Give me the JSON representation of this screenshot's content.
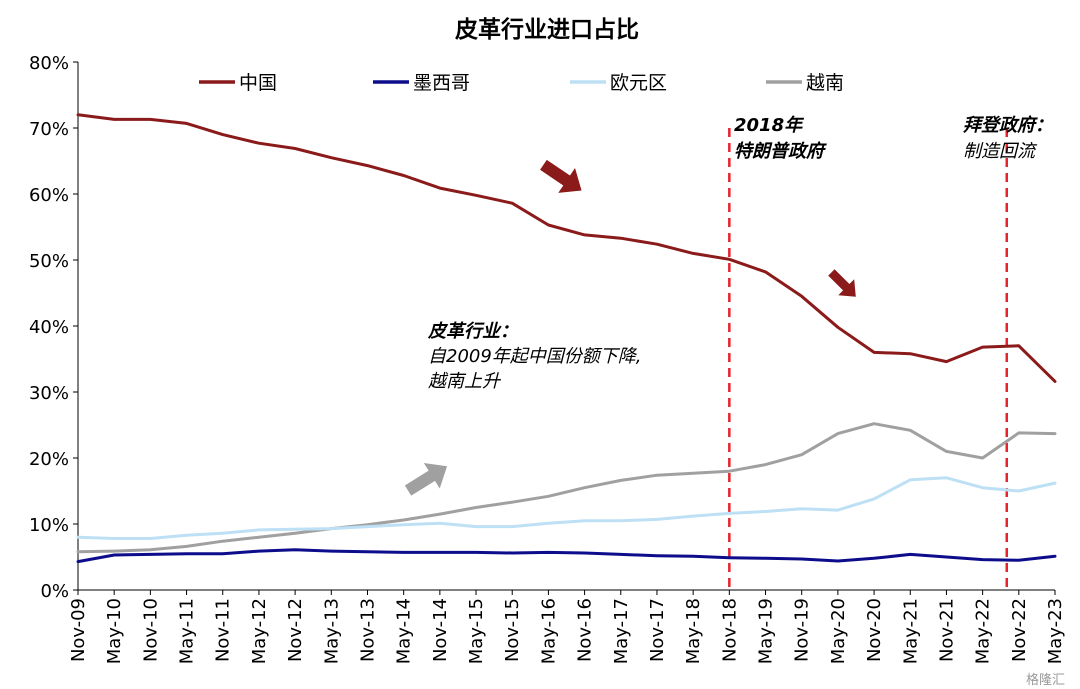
{
  "chart_data": {
    "type": "line",
    "title": "皮革行业进口占比",
    "xlabel": "",
    "ylabel": "",
    "ylim": [
      0,
      80
    ],
    "y_ticks": [
      "0%",
      "10%",
      "20%",
      "30%",
      "40%",
      "50%",
      "60%",
      "70%",
      "80%"
    ],
    "x_ticks": [
      "Nov-09",
      "May-10",
      "Nov-10",
      "May-11",
      "Nov-11",
      "May-12",
      "Nov-12",
      "May-13",
      "Nov-13",
      "May-14",
      "Nov-14",
      "May-15",
      "Nov-15",
      "May-16",
      "Nov-16",
      "May-17",
      "Nov-17",
      "May-18",
      "Nov-18",
      "May-19",
      "Nov-19",
      "May-20",
      "Nov-20",
      "May-21",
      "Nov-21",
      "May-22",
      "Nov-22",
      "May-23"
    ],
    "legend_position": "top",
    "grid": false,
    "series": [
      {
        "name": "中国",
        "color": "#8B1A1A",
        "values": [
          72,
          71.3,
          71.3,
          70.7,
          69,
          67.7,
          66.9,
          65.5,
          64.3,
          62.8,
          60.9,
          59.8,
          58.6,
          55.3,
          53.8,
          53.3,
          52.4,
          51,
          50.1,
          48.2,
          44.5,
          39.8,
          36,
          35.8,
          34.6,
          36.8,
          37,
          31.6
        ]
      },
      {
        "name": "墨西哥",
        "color": "#0D0D8C",
        "values": [
          4.3,
          5.3,
          5.4,
          5.5,
          5.5,
          5.9,
          6.1,
          5.9,
          5.8,
          5.7,
          5.7,
          5.7,
          5.6,
          5.7,
          5.6,
          5.4,
          5.2,
          5.1,
          4.9,
          4.8,
          4.7,
          4.4,
          4.8,
          5.4,
          5,
          4.6,
          4.5,
          5.1
        ]
      },
      {
        "name": "欧元区",
        "color": "#BDE0F5",
        "values": [
          8,
          7.8,
          7.8,
          8.3,
          8.6,
          9.1,
          9.2,
          9.3,
          9.6,
          9.9,
          10.1,
          9.6,
          9.6,
          10.1,
          10.5,
          10.5,
          10.7,
          11.2,
          11.6,
          11.9,
          12.3,
          12.1,
          13.8,
          16.7,
          17,
          15.5,
          15,
          16.2
        ]
      },
      {
        "name": "越南",
        "color": "#A0A0A0",
        "values": [
          5.8,
          5.9,
          6.1,
          6.6,
          7.4,
          8,
          8.6,
          9.3,
          9.9,
          10.6,
          11.5,
          12.5,
          13.3,
          14.2,
          15.5,
          16.6,
          17.4,
          17.7,
          18,
          19,
          20.5,
          23.7,
          25.2,
          24.2,
          21,
          20,
          23.8,
          23.7
        ]
      }
    ],
    "annotations": [
      {
        "title": "皮革行业：",
        "lines": [
          "自2009年起中国份额下降,",
          "越南上升"
        ]
      },
      {
        "title": "2018年",
        "lines": [
          "特朗普政府"
        ]
      },
      {
        "title": "拜登政府：",
        "lines": [
          "制造回流"
        ]
      }
    ],
    "vlines": [
      {
        "x": "Nov-18",
        "color": "#E8232A"
      },
      {
        "x": "Sep-22",
        "color": "#E8232A"
      }
    ],
    "arrows": [
      {
        "color": "#8B1A1A",
        "direction": "down-right"
      },
      {
        "color": "#8B1A1A",
        "direction": "down-right"
      },
      {
        "color": "#A0A0A0",
        "direction": "up-right"
      }
    ]
  },
  "watermark": "格隆汇"
}
